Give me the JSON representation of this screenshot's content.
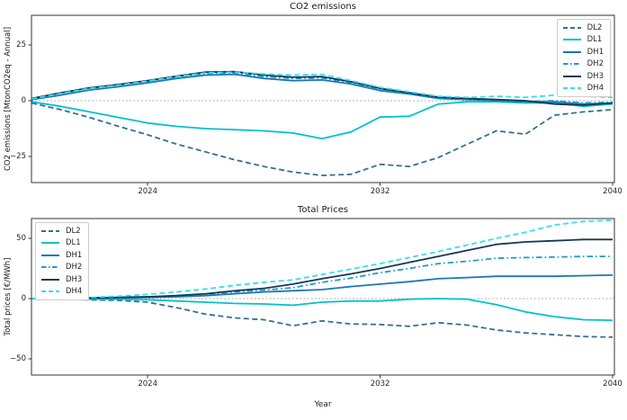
{
  "figure_background": "#ffffff",
  "chart_data": [
    {
      "type": "line",
      "title": "CO2 emissions",
      "ylabel": "CO2 emissions [MtonCO2eq - Annual]",
      "xlabel": "",
      "legend_position": "upper right",
      "grid": false,
      "zero_line": true,
      "zero_line_color": "#b0b0b0",
      "xlim": [
        2020,
        2040
      ],
      "ylim": [
        -36.7,
        38.3
      ],
      "xticks": [
        {
          "label": "2024",
          "value": 2024
        },
        {
          "label": "2032",
          "value": 2032
        },
        {
          "label": "2040",
          "value": 2040
        }
      ],
      "yticks": [
        {
          "label": "25",
          "value": 25
        },
        {
          "label": "0",
          "value": 0
        },
        {
          "label": "−25",
          "value": -25
        }
      ],
      "x": [
        2020,
        2021,
        2022,
        2023,
        2024,
        2025,
        2026,
        2027,
        2028,
        2029,
        2030,
        2031,
        2032,
        2033,
        2034,
        2035,
        2036,
        2037,
        2038,
        2039,
        2040
      ],
      "series": [
        {
          "name": "DL2",
          "color": "#33718f",
          "line_style": "dashed",
          "values": [
            -1,
            -4,
            -7.5,
            -11.5,
            -15.3,
            -19.5,
            -23,
            -26.5,
            -29.5,
            -32,
            -33.5,
            -33,
            -28.5,
            -29.5,
            -25.5,
            -19.5,
            -13.5,
            -15,
            -6.5,
            -5,
            -4
          ]
        },
        {
          "name": "DL1",
          "color": "#00c2cb",
          "line_style": "solid",
          "values": [
            -0.5,
            -2.5,
            -5,
            -7.5,
            -10,
            -11.5,
            -12.5,
            -13,
            -13.5,
            -14.5,
            -17,
            -14,
            -7.3,
            -7,
            -1.5,
            -0.5,
            -0.5,
            -1,
            -1,
            -2.5,
            -1.5
          ]
        },
        {
          "name": "DH1",
          "color": "#1878b8",
          "line_style": "solid",
          "values": [
            0.5,
            2.5,
            4.8,
            6.3,
            8,
            10,
            11.5,
            11.8,
            10,
            9,
            9.3,
            7.5,
            4.5,
            3,
            1,
            0.5,
            0,
            -0.5,
            -0.5,
            -1.5,
            -1
          ]
        },
        {
          "name": "DH2",
          "color": "#2099d5",
          "line_style": "dashdot",
          "values": [
            0.7,
            3,
            5.2,
            6.8,
            8.5,
            10.5,
            12,
            12.3,
            10.8,
            10,
            10.2,
            8,
            5,
            3.3,
            1.2,
            0.7,
            0.2,
            -0.3,
            0,
            -1,
            -0.7
          ]
        },
        {
          "name": "DH3",
          "color": "#16384f",
          "line_style": "solid",
          "values": [
            1,
            3.5,
            5.8,
            7.3,
            9,
            11,
            12.8,
            13,
            11.5,
            10.5,
            10.8,
            8.5,
            5.5,
            3.6,
            1.6,
            1,
            0.5,
            0,
            -1.5,
            -2,
            -1
          ]
        },
        {
          "name": "DH4",
          "color": "#35dff0",
          "line_style": "dashed",
          "values": [
            0.8,
            3.2,
            5.5,
            7,
            8.8,
            10.8,
            12.5,
            12.8,
            12,
            11.5,
            11.8,
            9,
            6,
            4,
            2,
            1.5,
            2,
            1.5,
            2.5,
            2,
            1.5
          ]
        }
      ]
    },
    {
      "type": "line",
      "title": "Total Prices",
      "ylabel": "Total prices [€/MWh]",
      "xlabel": "Year",
      "legend_position": "upper left",
      "grid": false,
      "zero_line": true,
      "zero_line_color": "#b0b0b0",
      "xlim": [
        2020,
        2040
      ],
      "ylim": [
        -63.4,
        66.4
      ],
      "xticks": [
        {
          "label": "2024",
          "value": 2024
        },
        {
          "label": "2032",
          "value": 2032
        },
        {
          "label": "2040",
          "value": 2040
        }
      ],
      "yticks": [
        {
          "label": "50",
          "value": 50
        },
        {
          "label": "0",
          "value": 0
        },
        {
          "label": "−50",
          "value": -50
        }
      ],
      "x": [
        2020,
        2021,
        2022,
        2023,
        2024,
        2025,
        2026,
        2027,
        2028,
        2029,
        2030,
        2031,
        2032,
        2033,
        2034,
        2035,
        2036,
        2037,
        2038,
        2039,
        2040
      ],
      "series": [
        {
          "name": "DL2",
          "color": "#33718f",
          "line_style": "dashed",
          "values": [
            0,
            -0.5,
            -1,
            -1.5,
            -3,
            -7.5,
            -13,
            -16,
            -17.5,
            -22.5,
            -18.5,
            -21,
            -21.5,
            -23,
            -20,
            -22,
            -26,
            -28.5,
            -30,
            -31.5,
            -32
          ]
        },
        {
          "name": "DL1",
          "color": "#00c2cb",
          "line_style": "solid",
          "values": [
            0,
            0,
            -0.5,
            -0.5,
            -1,
            -2,
            -3,
            -4,
            -4.5,
            -5.5,
            -3,
            -2,
            -2,
            -0.5,
            0,
            -0.5,
            -5,
            -11,
            -15,
            -17.5,
            -18
          ]
        },
        {
          "name": "DH1",
          "color": "#1878b8",
          "line_style": "solid",
          "values": [
            0,
            0,
            0.5,
            0.5,
            1,
            1.5,
            2.5,
            4,
            5.5,
            6.5,
            7.5,
            10,
            12,
            14,
            16.5,
            17.5,
            18.5,
            18.5,
            18.5,
            19,
            19.5
          ]
        },
        {
          "name": "DH2",
          "color": "#2099d5",
          "line_style": "dashdot",
          "values": [
            0,
            0,
            0.5,
            1,
            1.5,
            2,
            3.5,
            5.5,
            7,
            9,
            13.5,
            17,
            21.5,
            25,
            29,
            31,
            33.5,
            34,
            34.5,
            35,
            35
          ]
        },
        {
          "name": "DH3",
          "color": "#16384f",
          "line_style": "solid",
          "values": [
            0,
            0,
            0.5,
            1,
            1.5,
            2.5,
            4,
            6.5,
            8.5,
            12,
            16.5,
            20.5,
            25,
            30,
            35,
            40,
            45,
            47,
            48,
            49,
            49
          ]
        },
        {
          "name": "DH4",
          "color": "#35dff0",
          "line_style": "dashed",
          "values": [
            0,
            0.5,
            1,
            2,
            3.5,
            5.5,
            8,
            11,
            13.5,
            15.5,
            20,
            24.5,
            29,
            34,
            39,
            44.5,
            50,
            55,
            61,
            64,
            65
          ]
        }
      ]
    }
  ]
}
